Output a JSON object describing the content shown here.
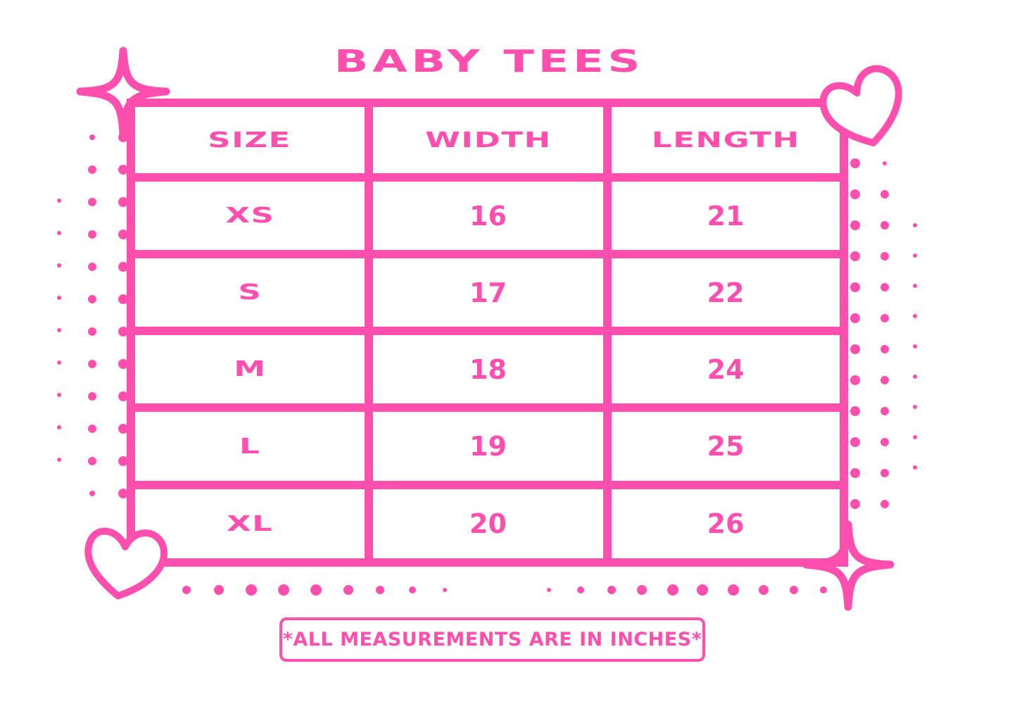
{
  "title": "BABY TEES",
  "accent_color": "#ff4fae",
  "table": {
    "headers": [
      "SIZE",
      "WIDTH",
      "LENGTH"
    ],
    "rows": [
      [
        "XS",
        "16",
        "21"
      ],
      [
        "S",
        "17",
        "22"
      ],
      [
        "M",
        "18",
        "24"
      ],
      [
        "L",
        "19",
        "25"
      ],
      [
        "XL",
        "20",
        "26"
      ]
    ]
  },
  "note": "*ALL MEASUREMENTS ARE IN INCHES*",
  "decorations": [
    "sparkle-icon",
    "heart-icon",
    "dot-pattern"
  ]
}
